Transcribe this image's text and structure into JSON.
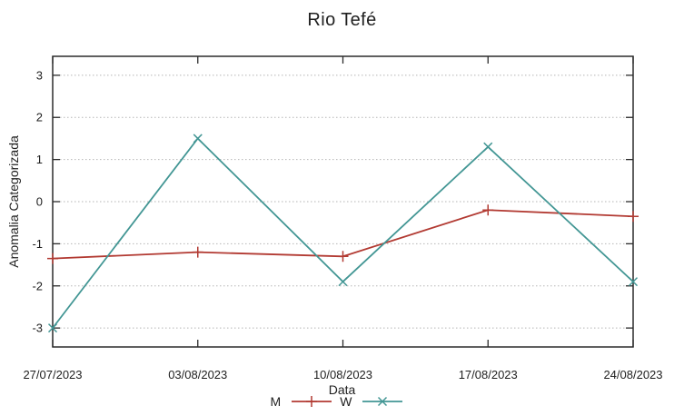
{
  "chart_data": {
    "type": "line",
    "title": "Rio Tefé",
    "xlabel": "Data",
    "ylabel": "Anomalia Categorizada",
    "categories": [
      "27/07/2023",
      "03/08/2023",
      "10/08/2023",
      "17/08/2023",
      "24/08/2023"
    ],
    "series": [
      {
        "name": "M",
        "color": "#b23a32",
        "marker": "plus",
        "values": [
          -1.35,
          -1.2,
          -1.3,
          -0.2,
          -0.35
        ]
      },
      {
        "name": "W",
        "color": "#429694",
        "marker": "cross",
        "values": [
          -3.0,
          1.5,
          -1.9,
          1.3,
          -1.9
        ]
      }
    ],
    "yticks": [
      -3,
      -2,
      -1,
      0,
      1,
      2,
      3
    ],
    "ylim": [
      -3.45,
      3.45
    ],
    "grid": "horizontal-dotted",
    "legend_position": "below-x-axis-label",
    "colors": {
      "axis": "#2b2b2b",
      "grid": "#b5b5b5",
      "text": "#1f1f1f",
      "background": "#ffffff"
    }
  }
}
